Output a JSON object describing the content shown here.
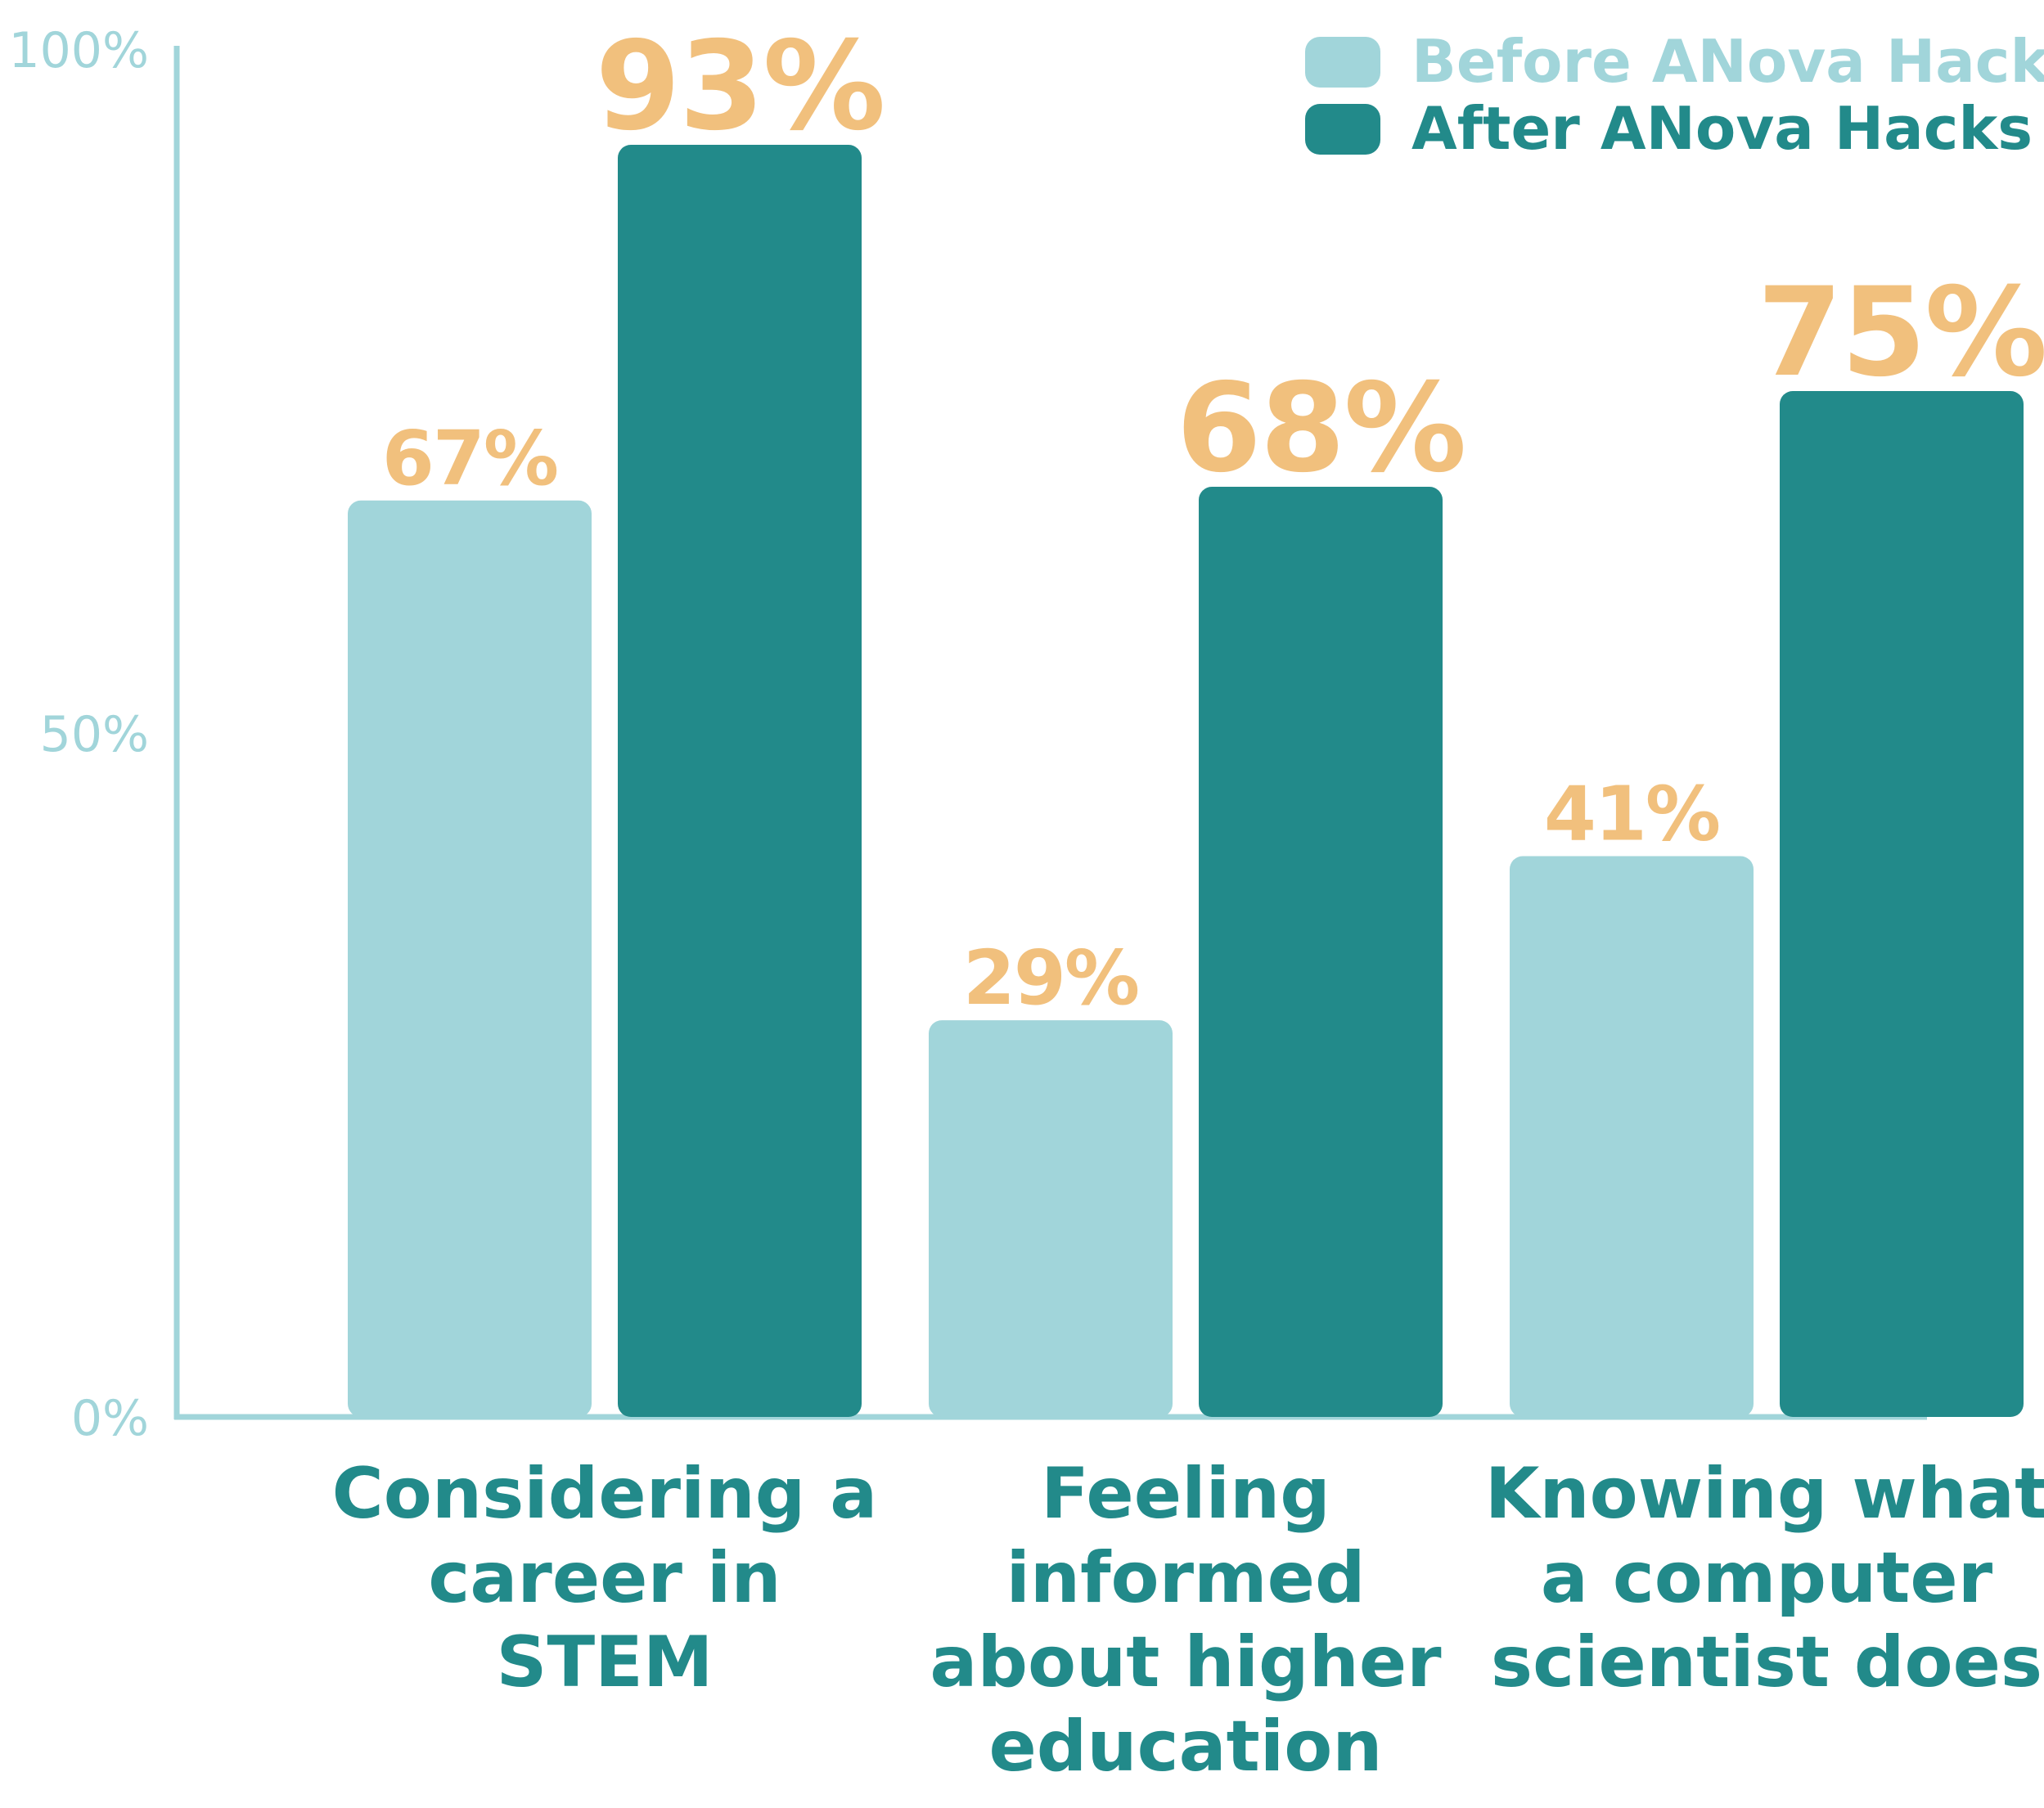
{
  "colors": {
    "before": "#a1d5da",
    "after": "#228a8a",
    "value_label": "#f1c07d",
    "axis": "#a1d5da",
    "category_text": "#228a8a"
  },
  "legend": {
    "items": [
      {
        "label": "Before ANova Hacks",
        "color": "#a1d5da"
      },
      {
        "label": "After ANova Hacks",
        "color": "#228a8a"
      }
    ],
    "placement": "top-right"
  },
  "chart_data": {
    "type": "bar",
    "categories": [
      [
        "Considering a",
        "career in",
        "STEM"
      ],
      [
        "Feeling",
        "informed",
        "about higher",
        "education"
      ],
      [
        "Knowing what",
        "a computer",
        "scientist does"
      ]
    ],
    "series": [
      {
        "name": "Before ANova Hacks",
        "values": [
          67,
          29,
          41
        ],
        "labels": [
          "67%",
          "29%",
          "41%"
        ]
      },
      {
        "name": "After ANova Hacks",
        "values": [
          93,
          68,
          75
        ],
        "labels": [
          "93%",
          "68%",
          "75%"
        ]
      }
    ],
    "y_ticks": [
      {
        "value": 0,
        "label": "0%"
      },
      {
        "value": 50,
        "label": "50%"
      },
      {
        "value": 100,
        "label": "100%"
      }
    ],
    "ylim": [
      0,
      100
    ],
    "grid": false
  }
}
